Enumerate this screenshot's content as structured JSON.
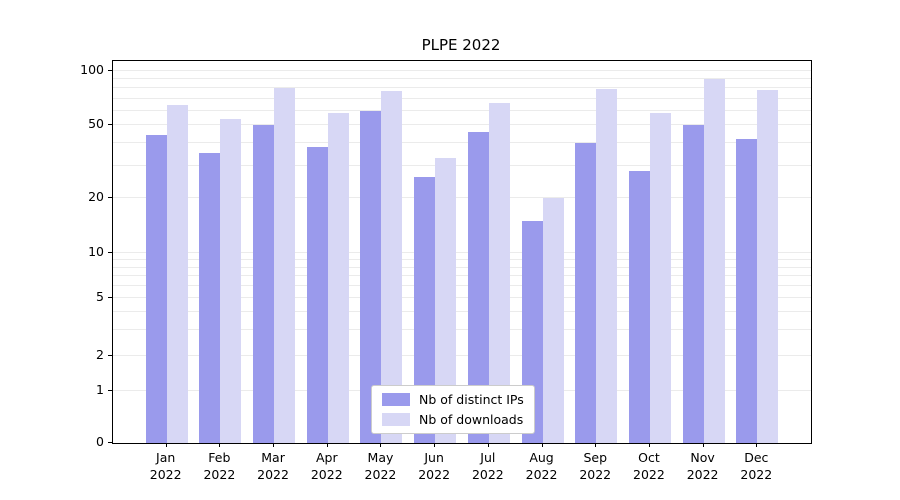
{
  "chart_data": {
    "type": "bar",
    "title": "PLPE 2022",
    "categories": [
      "Jan 2022",
      "Feb 2022",
      "Mar 2022",
      "Apr 2022",
      "May 2022",
      "Jun 2022",
      "Jul 2022",
      "Aug 2022",
      "Sep 2022",
      "Oct 2022",
      "Nov 2022",
      "Dec 2022"
    ],
    "series": [
      {
        "name": "Nb of distinct IPs",
        "color": "#9a9aec",
        "values": [
          44,
          35,
          50,
          38,
          60,
          26,
          46,
          15,
          40,
          28,
          50,
          42
        ]
      },
      {
        "name": "Nb of downloads",
        "color": "#d7d7f5",
        "values": [
          65,
          54,
          80,
          58,
          77,
          33,
          66,
          20,
          79,
          58,
          90,
          78
        ]
      }
    ],
    "yscale": "symlog",
    "yticks": [
      0,
      1,
      2,
      5,
      10,
      20,
      50,
      100
    ],
    "ylim": [
      0,
      100
    ],
    "xlabel": "",
    "ylabel": "",
    "grid": true,
    "legend_position": "lower center",
    "grid_color": "#ebebeb",
    "axis_color": "#000000",
    "background_color": "#ffffff"
  }
}
